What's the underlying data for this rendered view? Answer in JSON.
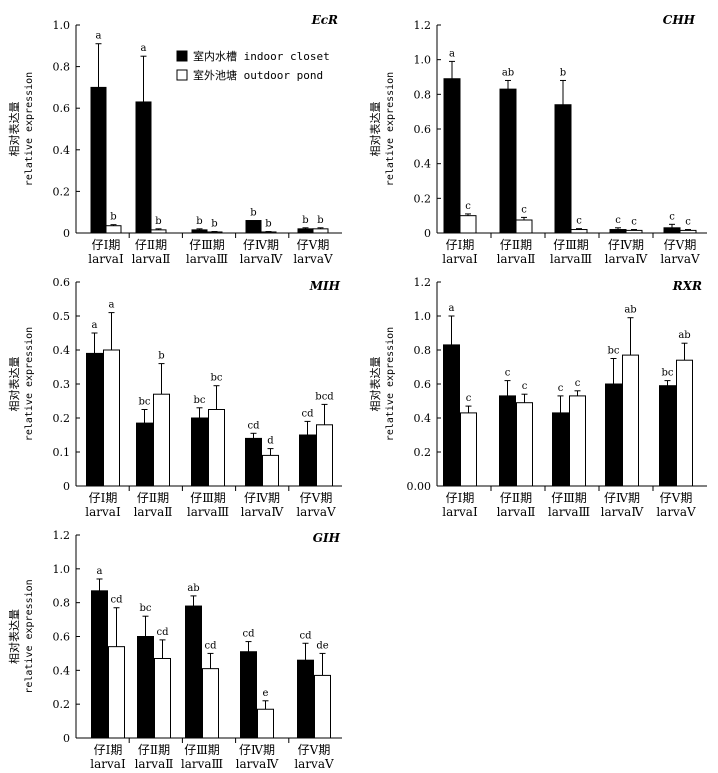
{
  "legend": [
    {
      "key": "indoor",
      "label": "室内水槽 indoor closet",
      "fill": "#000000"
    },
    {
      "key": "outdoor",
      "label": "室外池塘 outdoor pond",
      "fill": "#ffffff"
    }
  ],
  "categories_cn": [
    "仔Ⅰ期",
    "仔Ⅱ期",
    "仔Ⅲ期",
    "仔Ⅳ期",
    "仔Ⅴ期"
  ],
  "categories_en": [
    "larvaⅠ",
    "larvaⅡ",
    "larvaⅢ",
    "larvaⅣ",
    "larvaⅤ"
  ],
  "ylabel_cn": "相对表达量",
  "ylabel_en": "relative expression",
  "chart_data": [
    {
      "type": "bar",
      "title": "EcR",
      "ylim": [
        0,
        1.0
      ],
      "yticks": [
        "0",
        "0.2",
        "0.4",
        "0.6",
        "0.8",
        "1.0"
      ],
      "series": [
        {
          "name": "室内水槽 indoor closet",
          "values": [
            0.7,
            0.63,
            0.015,
            0.06,
            0.02
          ],
          "errors": [
            0.21,
            0.22,
            0.005,
            0.0,
            0.005
          ],
          "letters": [
            "a",
            "a",
            "b",
            "b",
            "b"
          ]
        },
        {
          "name": "室外池塘 outdoor pond",
          "values": [
            0.035,
            0.015,
            0.005,
            0.005,
            0.02
          ],
          "errors": [
            0.005,
            0.005,
            0.002,
            0.002,
            0.005
          ],
          "letters": [
            "b",
            "b",
            "b",
            "b",
            "b"
          ]
        }
      ]
    },
    {
      "type": "bar",
      "title": "CHH",
      "ylim": [
        0,
        1.2
      ],
      "yticks": [
        "0",
        "0.2",
        "0.4",
        "0.6",
        "0.8",
        "1.0",
        "1.2"
      ],
      "series": [
        {
          "name": "室内水槽 indoor closet",
          "values": [
            0.89,
            0.83,
            0.74,
            0.02,
            0.03
          ],
          "errors": [
            0.1,
            0.05,
            0.14,
            0.01,
            0.02
          ],
          "letters": [
            "a",
            "ab",
            "b",
            "c",
            "c"
          ]
        },
        {
          "name": "室外池塘 outdoor pond",
          "values": [
            0.1,
            0.075,
            0.02,
            0.015,
            0.015
          ],
          "errors": [
            0.01,
            0.015,
            0.005,
            0.005,
            0.005
          ],
          "letters": [
            "c",
            "c",
            "c",
            "c",
            "c"
          ]
        }
      ]
    },
    {
      "type": "bar",
      "title": "MIH",
      "ylim": [
        0,
        0.6
      ],
      "yticks": [
        "0",
        "0.1",
        "0.2",
        "0.3",
        "0.4",
        "0.5",
        "0.6"
      ],
      "series": [
        {
          "name": "室内水槽 indoor closet",
          "values": [
            0.39,
            0.185,
            0.2,
            0.14,
            0.15
          ],
          "errors": [
            0.06,
            0.04,
            0.03,
            0.015,
            0.04
          ],
          "letters": [
            "a",
            "bc",
            "bc",
            "cd",
            "cd"
          ]
        },
        {
          "name": "室外池塘 outdoor pond",
          "values": [
            0.4,
            0.27,
            0.225,
            0.09,
            0.18
          ],
          "errors": [
            0.11,
            0.09,
            0.07,
            0.02,
            0.06
          ],
          "letters": [
            "a",
            "b",
            "bc",
            "d",
            "bcd"
          ]
        }
      ]
    },
    {
      "type": "bar",
      "title": "RXR",
      "ylim": [
        0,
        1.2
      ],
      "yticks": [
        "0.00",
        "0.2",
        "0.4",
        "0.6",
        "0.8",
        "1.0",
        "1.2"
      ],
      "series": [
        {
          "name": "室内水槽 indoor closet",
          "values": [
            0.83,
            0.53,
            0.43,
            0.6,
            0.59
          ],
          "errors": [
            0.17,
            0.09,
            0.1,
            0.15,
            0.03
          ],
          "letters": [
            "a",
            "c",
            "c",
            "bc",
            "bc"
          ]
        },
        {
          "name": "室外池塘 outdoor pond",
          "values": [
            0.43,
            0.49,
            0.53,
            0.77,
            0.74
          ],
          "errors": [
            0.04,
            0.05,
            0.03,
            0.22,
            0.1
          ],
          "letters": [
            "c",
            "c",
            "c",
            "ab",
            "ab"
          ]
        }
      ]
    },
    {
      "type": "bar",
      "title": "GIH",
      "ylim": [
        0,
        1.2
      ],
      "yticks": [
        "0",
        "0.2",
        "0.4",
        "0.6",
        "0.8",
        "1.0",
        "1.2"
      ],
      "series": [
        {
          "name": "室内水槽 indoor closet",
          "values": [
            0.87,
            0.6,
            0.78,
            0.51,
            0.46
          ],
          "errors": [
            0.07,
            0.12,
            0.06,
            0.06,
            0.1
          ],
          "letters": [
            "a",
            "bc",
            "ab",
            "cd",
            "cd"
          ]
        },
        {
          "name": "室外池塘 outdoor pond",
          "values": [
            0.54,
            0.47,
            0.41,
            0.17,
            0.37
          ],
          "errors": [
            0.23,
            0.11,
            0.09,
            0.05,
            0.13
          ],
          "letters": [
            "cd",
            "cd",
            "cd",
            "e",
            "de"
          ]
        }
      ]
    }
  ]
}
